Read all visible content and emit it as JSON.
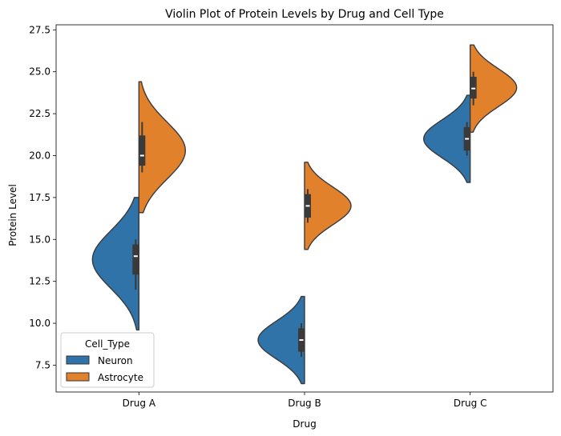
{
  "chart_data": {
    "type": "violin",
    "title": "Violin Plot of Protein Levels by Drug and Cell Type",
    "xlabel": "Drug",
    "ylabel": "Protein Level",
    "categories": [
      "Drug A",
      "Drug B",
      "Drug C"
    ],
    "ylim": [
      5.9,
      27.8
    ],
    "yticks": [
      7.5,
      10.0,
      12.5,
      15.0,
      17.5,
      20.0,
      22.5,
      25.0,
      27.5
    ],
    "ytick_labels": [
      "7.5",
      "10.0",
      "12.5",
      "15.0",
      "17.5",
      "20.0",
      "22.5",
      "25.0",
      "27.5"
    ],
    "grid": false,
    "split": true,
    "legend": {
      "title": "Cell_Type",
      "placement": "lower-left"
    },
    "series": [
      {
        "name": "Neuron",
        "side": "left",
        "color": "#2f73a8",
        "violins": [
          {
            "category": "Drug A",
            "min": 9.6,
            "max": 17.5,
            "median": 14.0,
            "q1": 12.9,
            "q3": 14.7,
            "whisker_low": 12.0,
            "whisker_high": 15.0
          },
          {
            "category": "Drug B",
            "min": 6.4,
            "max": 11.6,
            "median": 9.0,
            "q1": 8.3,
            "q3": 9.7,
            "whisker_low": 8.0,
            "whisker_high": 10.0
          },
          {
            "category": "Drug C",
            "min": 18.4,
            "max": 23.6,
            "median": 21.0,
            "q1": 20.3,
            "q3": 21.7,
            "whisker_low": 20.0,
            "whisker_high": 22.0
          }
        ]
      },
      {
        "name": "Astrocyte",
        "side": "right",
        "color": "#e1812c",
        "violins": [
          {
            "category": "Drug A",
            "min": 16.6,
            "max": 24.4,
            "median": 20.0,
            "q1": 19.4,
            "q3": 21.2,
            "whisker_low": 19.0,
            "whisker_high": 22.0
          },
          {
            "category": "Drug B",
            "min": 14.4,
            "max": 19.6,
            "median": 17.0,
            "q1": 16.3,
            "q3": 17.7,
            "whisker_low": 16.0,
            "whisker_high": 18.0
          },
          {
            "category": "Drug C",
            "min": 21.4,
            "max": 26.6,
            "median": 24.0,
            "q1": 23.4,
            "q3": 24.7,
            "whisker_low": 23.0,
            "whisker_high": 25.0
          }
        ]
      }
    ]
  }
}
